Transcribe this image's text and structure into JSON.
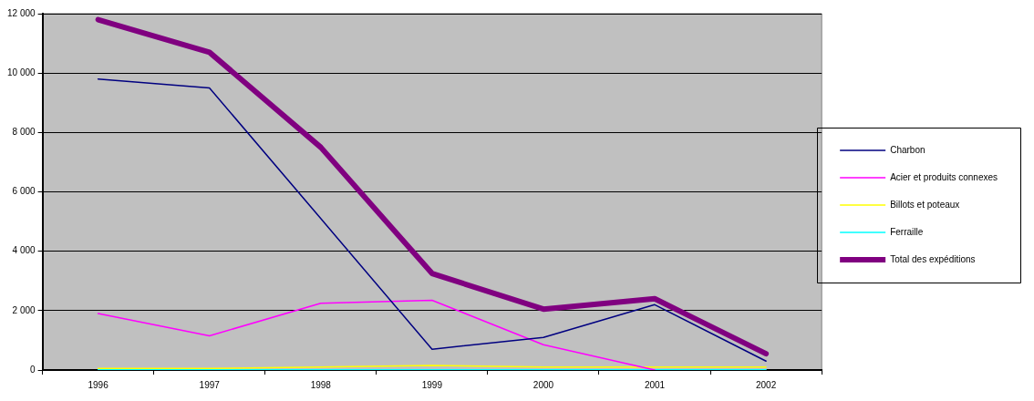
{
  "chart_data": {
    "type": "line",
    "categories": [
      "1996",
      "1997",
      "1998",
      "1999",
      "2000",
      "2001",
      "2002"
    ],
    "series": [
      {
        "name": "Charbon",
        "color": "#000080",
        "values": [
          9800,
          9500,
          5100,
          700,
          1100,
          2200,
          300
        ]
      },
      {
        "name": "Acier et produits connexes",
        "color": "#ff00ff",
        "values": [
          1900,
          1150,
          2250,
          2350,
          850,
          0,
          null
        ]
      },
      {
        "name": "Billots et poteaux",
        "color": "#ffff00",
        "values": [
          50,
          50,
          100,
          150,
          100,
          100,
          100
        ]
      },
      {
        "name": "Ferraille",
        "color": "#00ffff",
        "values": [
          10,
          10,
          10,
          10,
          10,
          10,
          10
        ]
      },
      {
        "name": "Total des expéditions",
        "color": "#800080",
        "values": [
          11800,
          10700,
          7500,
          3250,
          2050,
          2400,
          550
        ]
      }
    ],
    "ylim": [
      0,
      12000
    ],
    "yticks": [
      {
        "value": 0,
        "label": "0"
      },
      {
        "value": 2000,
        "label": "2 000"
      },
      {
        "value": 4000,
        "label": "4 000"
      },
      {
        "value": 6000,
        "label": "6 000"
      },
      {
        "value": 8000,
        "label": "8 000"
      },
      {
        "value": 10000,
        "label": "10 000"
      },
      {
        "value": 12000,
        "label": "12 000"
      }
    ],
    "grid": "y",
    "legend": "right",
    "marker": "none",
    "line_style": "solid"
  }
}
